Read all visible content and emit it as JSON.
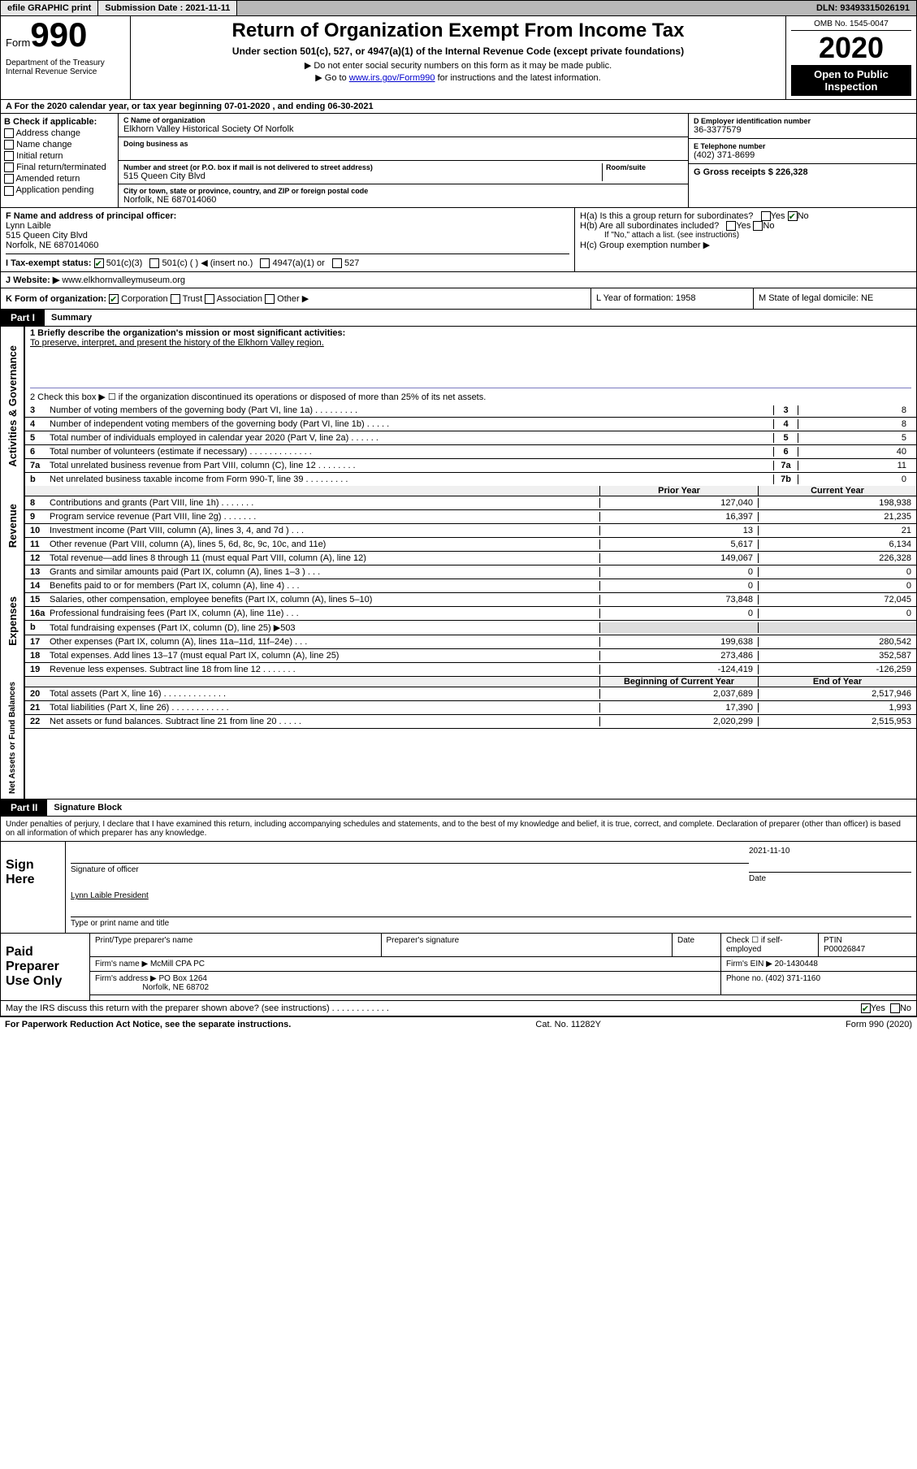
{
  "topbar": {
    "efile_label": "efile GRAPHIC print",
    "submission_label": "Submission Date : 2021-11-11",
    "dln_label": "DLN: 93493315026191"
  },
  "header": {
    "form_word": "Form",
    "form_number": "990",
    "dept": "Department of the Treasury\nInternal Revenue Service",
    "title": "Return of Organization Exempt From Income Tax",
    "subtitle": "Under section 501(c), 527, or 4947(a)(1) of the Internal Revenue Code (except private foundations)",
    "note1": "▶ Do not enter social security numbers on this form as it may be made public.",
    "note2_pre": "▶ Go to ",
    "note2_link": "www.irs.gov/Form990",
    "note2_post": " for instructions and the latest information.",
    "omb": "OMB No. 1545-0047",
    "year": "2020",
    "open": "Open to Public Inspection"
  },
  "line_a": "A For the 2020 calendar year, or tax year beginning 07-01-2020    , and ending 06-30-2021",
  "col_b": {
    "label": "B Check if applicable:",
    "opts": [
      "Address change",
      "Name change",
      "Initial return",
      "Final return/terminated",
      "Amended return",
      "Application pending"
    ]
  },
  "col_c": {
    "name_lbl": "C Name of organization",
    "name": "Elkhorn Valley Historical Society Of Norfolk",
    "dba_lbl": "Doing business as",
    "addr_lbl": "Number and street (or P.O. box if mail is not delivered to street address)",
    "room_lbl": "Room/suite",
    "addr": "515 Queen City Blvd",
    "city_lbl": "City or town, state or province, country, and ZIP or foreign postal code",
    "city": "Norfolk, NE  687014060"
  },
  "col_d": {
    "ein_lbl": "D Employer identification number",
    "ein": "36-3377579",
    "tel_lbl": "E Telephone number",
    "tel": "(402) 371-8699",
    "gross_lbl": "G Gross receipts $ 226,328"
  },
  "row_f": {
    "f_lbl": "F Name and address of principal officer:",
    "f_name": "Lynn Laible",
    "f_addr1": "515 Queen City Blvd",
    "f_addr2": "Norfolk, NE  687014060",
    "ha": "H(a)  Is this a group return for subordinates?",
    "hb": "H(b)  Are all subordinates included?",
    "hb_note": "If \"No,\" attach a list. (see instructions)",
    "hc": "H(c)  Group exemption number ▶"
  },
  "row_i": {
    "tax_lbl": "I   Tax-exempt status:",
    "opts": [
      "501(c)(3)",
      "501(c) (  ) ◀ (insert no.)",
      "4947(a)(1) or",
      "527"
    ]
  },
  "row_j": {
    "lbl": "J   Website: ▶",
    "val": "  www.elkhornvalleymuseum.org"
  },
  "row_k": {
    "k_lbl": "K Form of organization:",
    "k_opts": [
      "Corporation",
      "Trust",
      "Association",
      "Other ▶"
    ],
    "l_lbl": "L Year of formation: 1958",
    "m_lbl": "M State of legal domicile: NE"
  },
  "part1": {
    "hdr": "Part I",
    "title": "Summary"
  },
  "summary": {
    "q1_lbl": "1   Briefly describe the organization's mission or most significant activities:",
    "q1_val": "To preserve, interpret, and present the history of the Elkhorn Valley region.",
    "q2_lbl": "2   Check this box ▶ ☐  if the organization discontinued its operations or disposed of more than 25% of its net assets.",
    "lines_ag": [
      {
        "n": "3",
        "t": "Number of voting members of the governing body (Part VI, line 1a)   .   .   .   .   .   .   .   .   .",
        "box": "3",
        "v": "8"
      },
      {
        "n": "4",
        "t": "Number of independent voting members of the governing body (Part VI, line 1b)   .   .   .   .   .",
        "box": "4",
        "v": "8"
      },
      {
        "n": "5",
        "t": "Total number of individuals employed in calendar year 2020 (Part V, line 2a)   .   .   .   .   .   .",
        "box": "5",
        "v": "5"
      },
      {
        "n": "6",
        "t": "Total number of volunteers (estimate if necessary)   .   .   .   .   .   .   .   .   .   .   .   .   .",
        "box": "6",
        "v": "40"
      },
      {
        "n": "7a",
        "t": "Total unrelated business revenue from Part VIII, column (C), line 12   .   .   .   .   .   .   .   .",
        "box": "7a",
        "v": "11"
      },
      {
        "n": "b",
        "t": "Net unrelated business taxable income from Form 990-T, line 39   .   .   .   .   .   .   .   .   .",
        "box": "7b",
        "v": "0"
      }
    ],
    "hdr_prior": "Prior Year",
    "hdr_current": "Current Year",
    "revenue": [
      {
        "n": "8",
        "t": "Contributions and grants (Part VIII, line 1h)   .   .   .   .   .   .   .",
        "v1": "127,040",
        "v2": "198,938"
      },
      {
        "n": "9",
        "t": "Program service revenue (Part VIII, line 2g)   .   .   .   .   .   .   .",
        "v1": "16,397",
        "v2": "21,235"
      },
      {
        "n": "10",
        "t": "Investment income (Part VIII, column (A), lines 3, 4, and 7d )   .   .   .",
        "v1": "13",
        "v2": "21"
      },
      {
        "n": "11",
        "t": "Other revenue (Part VIII, column (A), lines 5, 6d, 8c, 9c, 10c, and 11e)",
        "v1": "5,617",
        "v2": "6,134"
      },
      {
        "n": "12",
        "t": "Total revenue—add lines 8 through 11 (must equal Part VIII, column (A), line 12)",
        "v1": "149,067",
        "v2": "226,328"
      }
    ],
    "expenses": [
      {
        "n": "13",
        "t": "Grants and similar amounts paid (Part IX, column (A), lines 1–3 )   .   .   .",
        "v1": "0",
        "v2": "0"
      },
      {
        "n": "14",
        "t": "Benefits paid to or for members (Part IX, column (A), line 4)   .   .   .",
        "v1": "0",
        "v2": "0"
      },
      {
        "n": "15",
        "t": "Salaries, other compensation, employee benefits (Part IX, column (A), lines 5–10)",
        "v1": "73,848",
        "v2": "72,045"
      },
      {
        "n": "16a",
        "t": "Professional fundraising fees (Part IX, column (A), line 11e)   .   .   .",
        "v1": "0",
        "v2": "0"
      },
      {
        "n": "b",
        "t": "Total fundraising expenses (Part IX, column (D), line 25) ▶503",
        "v1": "",
        "v2": ""
      },
      {
        "n": "17",
        "t": "Other expenses (Part IX, column (A), lines 11a–11d, 11f–24e)   .   .   .",
        "v1": "199,638",
        "v2": "280,542"
      },
      {
        "n": "18",
        "t": "Total expenses. Add lines 13–17 (must equal Part IX, column (A), line 25)",
        "v1": "273,486",
        "v2": "352,587"
      },
      {
        "n": "19",
        "t": "Revenue less expenses. Subtract line 18 from line 12   .   .   .   .   .   .   .",
        "v1": "-124,419",
        "v2": "-126,259"
      }
    ],
    "hdr_begin": "Beginning of Current Year",
    "hdr_end": "End of Year",
    "netassets": [
      {
        "n": "20",
        "t": "Total assets (Part X, line 16)   .   .   .   .   .   .   .   .   .   .   .   .   .",
        "v1": "2,037,689",
        "v2": "2,517,946"
      },
      {
        "n": "21",
        "t": "Total liabilities (Part X, line 26)   .   .   .   .   .   .   .   .   .   .   .   .",
        "v1": "17,390",
        "v2": "1,993"
      },
      {
        "n": "22",
        "t": "Net assets or fund balances. Subtract line 21 from line 20   .   .   .   .   .",
        "v1": "2,020,299",
        "v2": "2,515,953"
      }
    ],
    "vlabels": {
      "ag": "Activities & Governance",
      "rev": "Revenue",
      "exp": "Expenses",
      "na": "Net Assets or Fund Balances"
    }
  },
  "part2": {
    "hdr": "Part II",
    "title": "Signature Block"
  },
  "perjury": "Under penalties of perjury, I declare that I have examined this return, including accompanying schedules and statements, and to the best of my knowledge and belief, it is true, correct, and complete. Declaration of preparer (other than officer) is based on all information of which preparer has any knowledge.",
  "sign": {
    "lbl": "Sign Here",
    "sig_of": "Signature of officer",
    "date_lbl": "Date",
    "date": "2021-11-10",
    "name": "Lynn Laible  President",
    "name_lbl": "Type or print name and title"
  },
  "prep": {
    "lbl": "Paid Preparer Use Only",
    "h1": "Print/Type preparer's name",
    "h2": "Preparer's signature",
    "h3": "Date",
    "h4": "Check ☐ if self-employed",
    "h5": "PTIN",
    "ptin": "P00026847",
    "firm_lbl": "Firm's name    ▶",
    "firm": "McMill CPA PC",
    "ein_lbl": "Firm's EIN ▶",
    "ein": "20-1430448",
    "addr_lbl": "Firm's address ▶",
    "addr1": "PO Box 1264",
    "addr2": "Norfolk, NE  68702",
    "phone_lbl": "Phone no.",
    "phone": "(402) 371-1160"
  },
  "discuss": "May the IRS discuss this return with the preparer shown above? (see instructions)   .   .   .   .   .   .   .   .   .   .   .   .",
  "footer": {
    "l": "For Paperwork Reduction Act Notice, see the separate instructions.",
    "c": "Cat. No. 11282Y",
    "r": "Form 990 (2020)"
  }
}
